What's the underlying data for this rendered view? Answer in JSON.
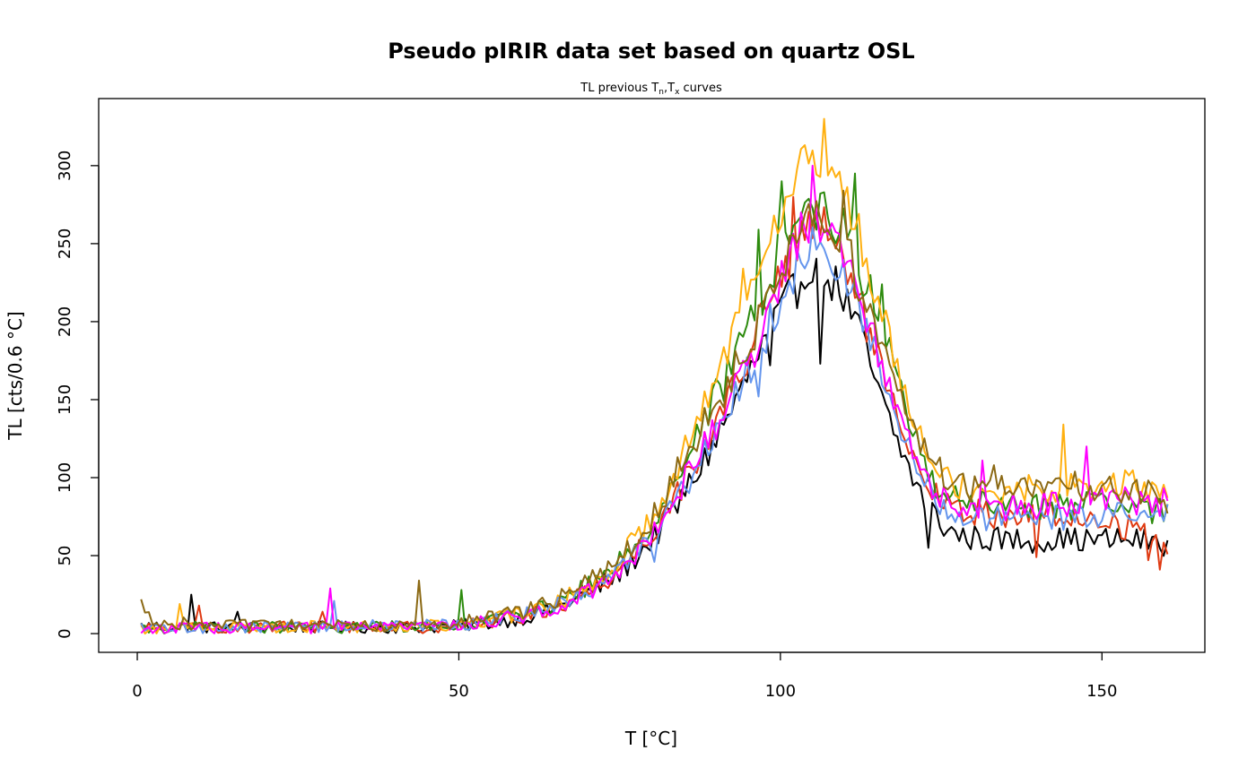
{
  "chart_data": {
    "type": "line",
    "title": "Pseudo pIRIR data set based on quartz OSL",
    "subtitle": {
      "base": "TL previous T",
      "sub1": "n",
      "sep": ",T",
      "sub2": "x",
      "rest": " curves"
    },
    "xlabel": "T [°C]",
    "ylabel": "TL [cts/0.6 °C]",
    "xlim": [
      -6,
      166
    ],
    "ylim": [
      -12,
      343
    ],
    "xticks": [
      0,
      50,
      100,
      150
    ],
    "yticks": [
      0,
      50,
      100,
      150,
      200,
      250,
      300
    ],
    "grid": false,
    "x_step": 0.6,
    "x_count": 267,
    "series": [
      {
        "color": "#000000",
        "anchors": [
          [
            0.6,
            5
          ],
          [
            10,
            4
          ],
          [
            20,
            4
          ],
          [
            30,
            4
          ],
          [
            40,
            4
          ],
          [
            45,
            4
          ],
          [
            50,
            5
          ],
          [
            55,
            7
          ],
          [
            60,
            10
          ],
          [
            65,
            16
          ],
          [
            70,
            26
          ],
          [
            75,
            38
          ],
          [
            80,
            60
          ],
          [
            84,
            82
          ],
          [
            88,
            110
          ],
          [
            92,
            140
          ],
          [
            95,
            165
          ],
          [
            98,
            190
          ],
          [
            100,
            205
          ],
          [
            103,
            225
          ],
          [
            105,
            240
          ],
          [
            107,
            232
          ],
          [
            110,
            215
          ],
          [
            113,
            185
          ],
          [
            116,
            145
          ],
          [
            119,
            115
          ],
          [
            122,
            88
          ],
          [
            125,
            70
          ],
          [
            128,
            62
          ],
          [
            135,
            60
          ],
          [
            145,
            60
          ],
          [
            155,
            60
          ],
          [
            160,
            58
          ]
        ],
        "peaks": [
          [
            8.4,
            25
          ],
          [
            15.6,
            14
          ],
          [
            106,
            173
          ],
          [
            98.4,
            172
          ],
          [
            144,
            55
          ],
          [
            123,
            55
          ]
        ]
      },
      {
        "color": "#DF3A12",
        "anchors": [
          [
            0.6,
            3
          ],
          [
            10,
            4
          ],
          [
            20,
            4
          ],
          [
            30,
            5
          ],
          [
            40,
            4
          ],
          [
            45,
            4
          ],
          [
            50,
            5
          ],
          [
            55,
            8
          ],
          [
            60,
            11
          ],
          [
            65,
            17
          ],
          [
            70,
            27
          ],
          [
            75,
            40
          ],
          [
            80,
            65
          ],
          [
            84,
            90
          ],
          [
            88,
            120
          ],
          [
            92,
            152
          ],
          [
            95,
            180
          ],
          [
            98,
            210
          ],
          [
            100,
            228
          ],
          [
            103,
            250
          ],
          [
            105,
            262
          ],
          [
            107,
            258
          ],
          [
            110,
            238
          ],
          [
            113,
            205
          ],
          [
            116,
            162
          ],
          [
            119,
            125
          ],
          [
            122,
            98
          ],
          [
            125,
            85
          ],
          [
            128,
            78
          ],
          [
            135,
            76
          ],
          [
            145,
            75
          ],
          [
            155,
            68
          ],
          [
            160,
            56
          ]
        ],
        "peaks": [
          [
            9.6,
            18
          ],
          [
            28.8,
            14
          ],
          [
            102,
            280
          ],
          [
            140,
            49
          ],
          [
            157,
            47
          ],
          [
            159,
            41
          ]
        ]
      },
      {
        "color": "#2D8B0E",
        "anchors": [
          [
            0.6,
            3
          ],
          [
            10,
            4
          ],
          [
            20,
            4
          ],
          [
            30,
            4
          ],
          [
            40,
            5
          ],
          [
            45,
            5
          ],
          [
            50,
            6
          ],
          [
            55,
            9
          ],
          [
            60,
            13
          ],
          [
            65,
            19
          ],
          [
            70,
            30
          ],
          [
            75,
            45
          ],
          [
            80,
            72
          ],
          [
            84,
            100
          ],
          [
            88,
            135
          ],
          [
            92,
            168
          ],
          [
            95,
            195
          ],
          [
            98,
            225
          ],
          [
            100,
            248
          ],
          [
            103,
            268
          ],
          [
            105,
            275
          ],
          [
            107,
            272
          ],
          [
            110,
            258
          ],
          [
            113,
            228
          ],
          [
            116,
            200
          ],
          [
            119,
            150
          ],
          [
            122,
            110
          ],
          [
            125,
            92
          ],
          [
            128,
            85
          ],
          [
            135,
            82
          ],
          [
            145,
            82
          ],
          [
            155,
            80
          ],
          [
            160,
            78
          ]
        ],
        "peaks": [
          [
            50.4,
            28
          ],
          [
            96.6,
            259
          ],
          [
            100.2,
            290
          ],
          [
            111.6,
            295
          ],
          [
            115.8,
            224
          ]
        ]
      },
      {
        "color": "#FFB010",
        "anchors": [
          [
            0.6,
            3
          ],
          [
            10,
            5
          ],
          [
            20,
            4
          ],
          [
            30,
            5
          ],
          [
            40,
            4
          ],
          [
            45,
            5
          ],
          [
            50,
            6
          ],
          [
            55,
            9
          ],
          [
            60,
            13
          ],
          [
            65,
            19
          ],
          [
            70,
            30
          ],
          [
            75,
            47
          ],
          [
            80,
            75
          ],
          [
            84,
            108
          ],
          [
            88,
            145
          ],
          [
            92,
            185
          ],
          [
            95,
            222
          ],
          [
            98,
            258
          ],
          [
            100,
            275
          ],
          [
            103,
            295
          ],
          [
            105,
            305
          ],
          [
            107,
            300
          ],
          [
            110,
            282
          ],
          [
            113,
            245
          ],
          [
            116,
            205
          ],
          [
            119,
            162
          ],
          [
            122,
            130
          ],
          [
            125,
            105
          ],
          [
            128,
            95
          ],
          [
            135,
            92
          ],
          [
            145,
            95
          ],
          [
            155,
            95
          ],
          [
            160,
            90
          ]
        ],
        "peaks": [
          [
            106.8,
            330
          ],
          [
            94.2,
            234
          ],
          [
            144,
            134
          ],
          [
            6.6,
            19
          ]
        ]
      },
      {
        "color": "#6495ED",
        "anchors": [
          [
            0.6,
            3
          ],
          [
            10,
            4
          ],
          [
            20,
            4
          ],
          [
            30,
            5
          ],
          [
            40,
            5
          ],
          [
            45,
            5
          ],
          [
            50,
            6
          ],
          [
            55,
            8
          ],
          [
            60,
            12
          ],
          [
            65,
            17
          ],
          [
            70,
            27
          ],
          [
            75,
            40
          ],
          [
            80,
            63
          ],
          [
            84,
            88
          ],
          [
            88,
            115
          ],
          [
            92,
            145
          ],
          [
            95,
            168
          ],
          [
            98,
            195
          ],
          [
            100,
            215
          ],
          [
            103,
            238
          ],
          [
            105,
            250
          ],
          [
            107,
            245
          ],
          [
            110,
            232
          ],
          [
            113,
            200
          ],
          [
            116,
            160
          ],
          [
            119,
            125
          ],
          [
            122,
            100
          ],
          [
            125,
            82
          ],
          [
            128,
            75
          ],
          [
            135,
            72
          ],
          [
            145,
            75
          ],
          [
            155,
            78
          ],
          [
            160,
            75
          ]
        ],
        "peaks": [
          [
            30.6,
            21
          ],
          [
            80.4,
            46
          ],
          [
            96.6,
            152
          ]
        ]
      },
      {
        "color": "#FF00FF",
        "anchors": [
          [
            0.6,
            2
          ],
          [
            10,
            4
          ],
          [
            20,
            3
          ],
          [
            30,
            4
          ],
          [
            40,
            4
          ],
          [
            45,
            5
          ],
          [
            50,
            6
          ],
          [
            55,
            8
          ],
          [
            60,
            11
          ],
          [
            65,
            17
          ],
          [
            70,
            27
          ],
          [
            75,
            40
          ],
          [
            80,
            65
          ],
          [
            84,
            92
          ],
          [
            88,
            120
          ],
          [
            92,
            148
          ],
          [
            95,
            172
          ],
          [
            98,
            200
          ],
          [
            100,
            228
          ],
          [
            103,
            255
          ],
          [
            105,
            268
          ],
          [
            107,
            262
          ],
          [
            110,
            245
          ],
          [
            113,
            212
          ],
          [
            116,
            172
          ],
          [
            119,
            135
          ],
          [
            122,
            105
          ],
          [
            125,
            88
          ],
          [
            128,
            80
          ],
          [
            135,
            80
          ],
          [
            145,
            85
          ],
          [
            155,
            85
          ],
          [
            160,
            85
          ]
        ],
        "peaks": [
          [
            30,
            29
          ],
          [
            105,
            300
          ],
          [
            147.6,
            120
          ],
          [
            131.4,
            111
          ]
        ]
      },
      {
        "color": "#8B6914",
        "anchors": [
          [
            0.6,
            10
          ],
          [
            10,
            5
          ],
          [
            20,
            5
          ],
          [
            30,
            5
          ],
          [
            40,
            5
          ],
          [
            45,
            6
          ],
          [
            50,
            7
          ],
          [
            55,
            10
          ],
          [
            60,
            14
          ],
          [
            65,
            21
          ],
          [
            70,
            32
          ],
          [
            75,
            48
          ],
          [
            80,
            74
          ],
          [
            84,
            105
          ],
          [
            88,
            135
          ],
          [
            92,
            162
          ],
          [
            95,
            185
          ],
          [
            98,
            215
          ],
          [
            100,
            238
          ],
          [
            103,
            258
          ],
          [
            105,
            268
          ],
          [
            107,
            265
          ],
          [
            110,
            250
          ],
          [
            113,
            218
          ],
          [
            116,
            180
          ],
          [
            119,
            145
          ],
          [
            122,
            118
          ],
          [
            125,
            105
          ],
          [
            128,
            95
          ],
          [
            135,
            92
          ],
          [
            145,
            95
          ],
          [
            155,
            92
          ],
          [
            160,
            85
          ]
        ],
        "peaks": [
          [
            0.6,
            22
          ],
          [
            43.8,
            34
          ],
          [
            109.8,
            284
          ],
          [
            124.8,
            113
          ],
          [
            133.2,
            108
          ]
        ]
      }
    ]
  }
}
